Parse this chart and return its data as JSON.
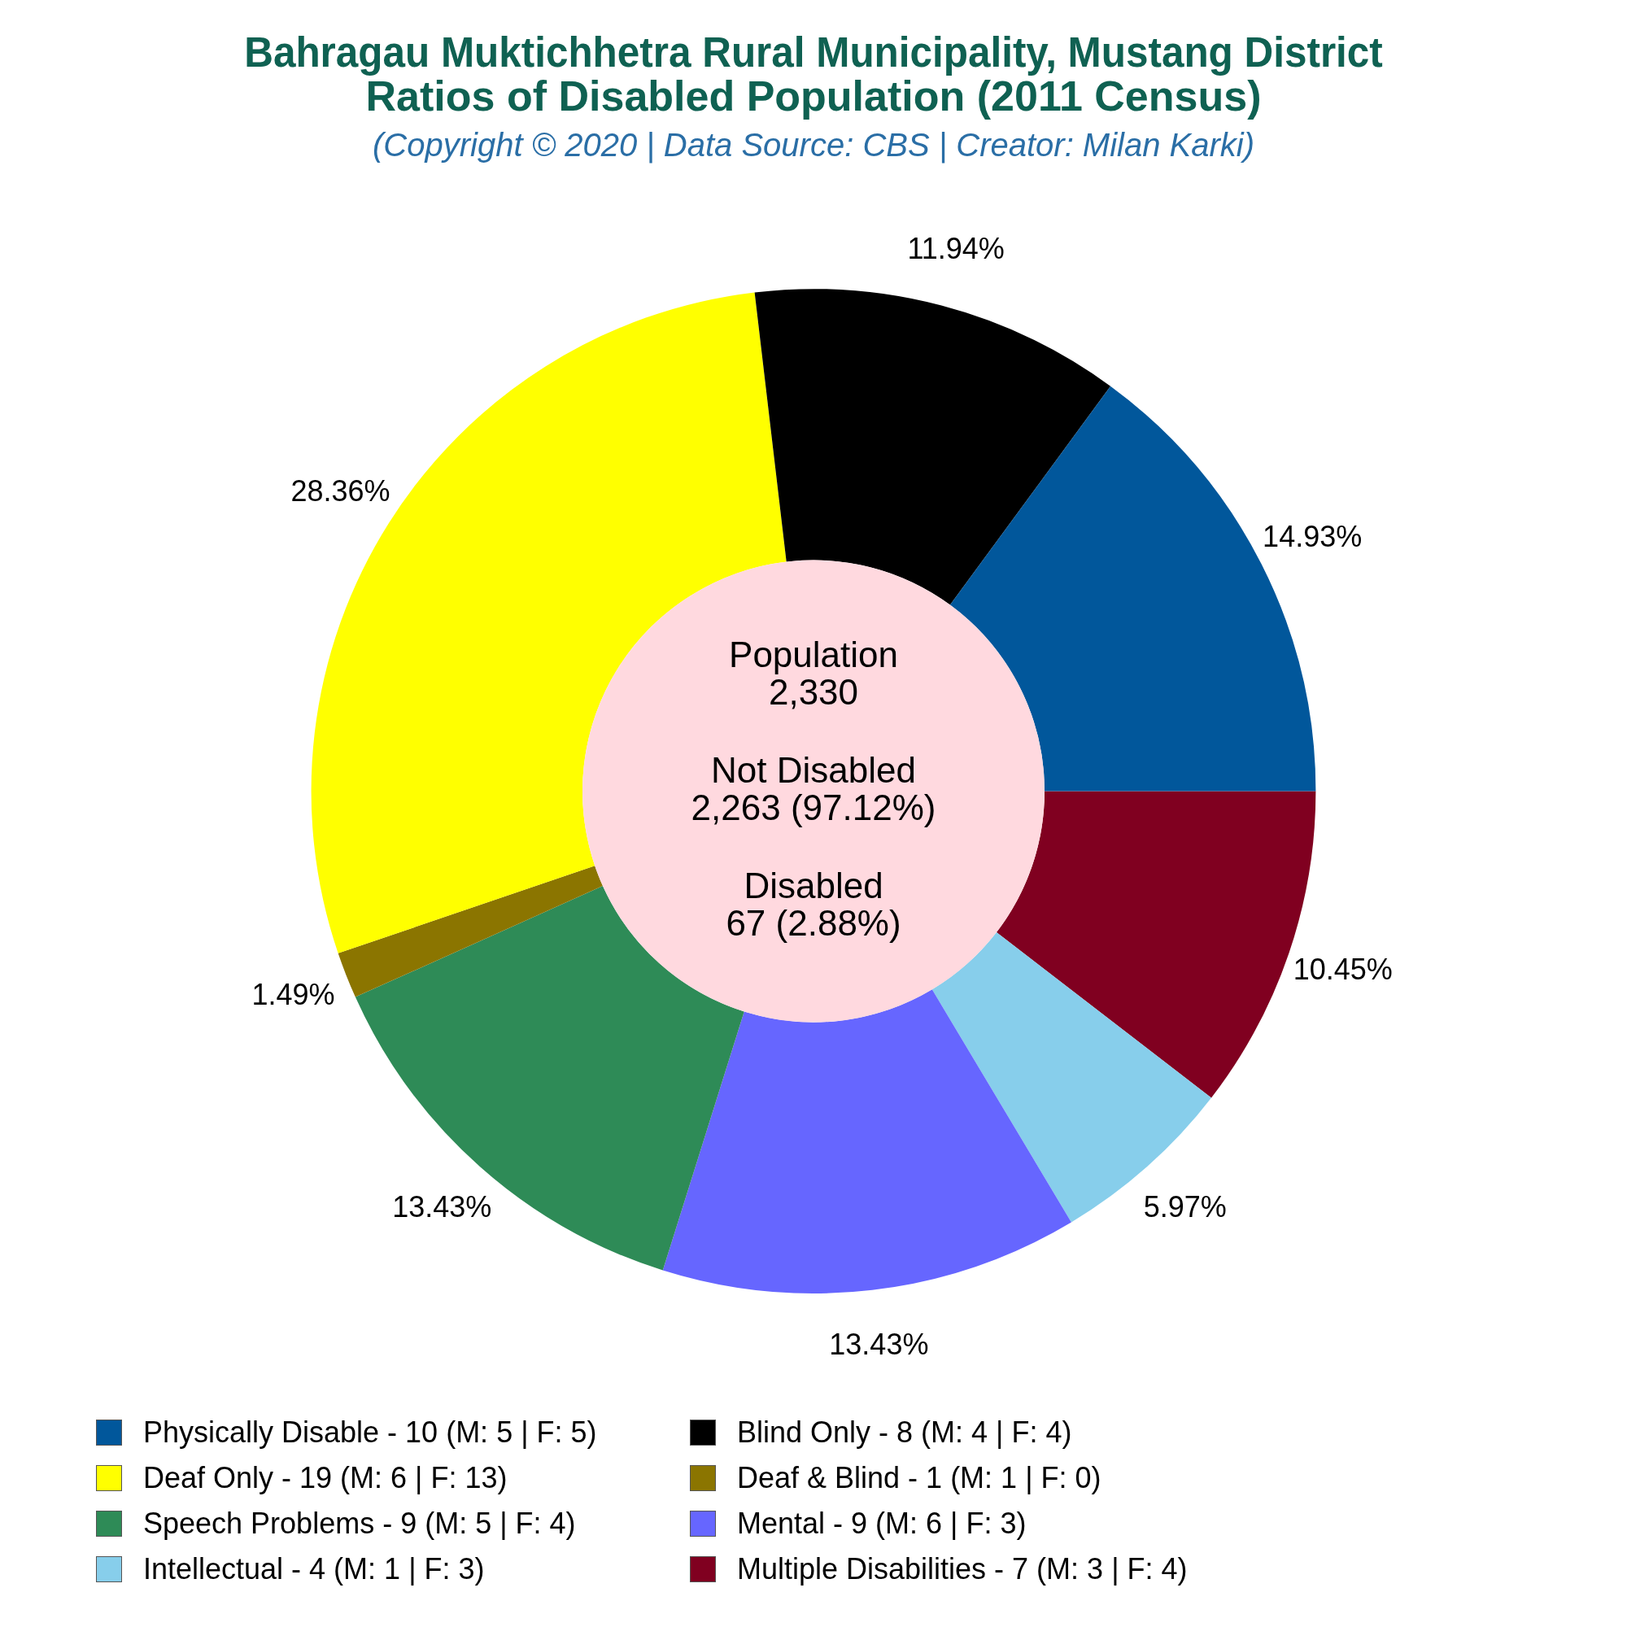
{
  "chart_data": {
    "type": "donut",
    "title": "Bahragau Muktichhetra Rural Municipality, Mustang District\nRatios of Disabled Population (2011 Census)",
    "subtitle": "(Copyright © 2020 | Data Source: CBS | Creator: Milan Karki)",
    "categories": [
      "Physically Disable - 10 (M: 5 | F: 5)",
      "Blind Only - 8 (M: 4 | F: 4)",
      "Deaf Only - 19 (M: 6 | F: 13)",
      "Deaf & Blind - 1 (M: 1 | F: 0)",
      "Speech Problems - 9 (M: 5 | F: 4)",
      "Mental - 9 (M: 6 | F: 3)",
      "Intellectual - 4 (M: 1 | F: 3)",
      "Multiple Disabilities - 7 (M: 3 | F: 4)"
    ],
    "values": [
      14.93,
      11.94,
      28.36,
      1.49,
      13.43,
      13.43,
      5.97,
      10.45
    ],
    "value_labels": [
      "14.93%",
      "11.94%",
      "28.36%",
      "1.49%",
      "13.43%",
      "13.43%",
      "5.97%",
      "10.45%"
    ],
    "colors": [
      "#01579b",
      "#000000",
      "#ffff00",
      "#8b7500",
      "#2e8b57",
      "#6666ff",
      "#87ceeb",
      "#800020"
    ],
    "annotations": [
      "Population\n2,330",
      "Not Disabled\n2,263 (97.12%)",
      "Disabled\n67 (2.88%)"
    ],
    "legend": "bottom"
  }
}
